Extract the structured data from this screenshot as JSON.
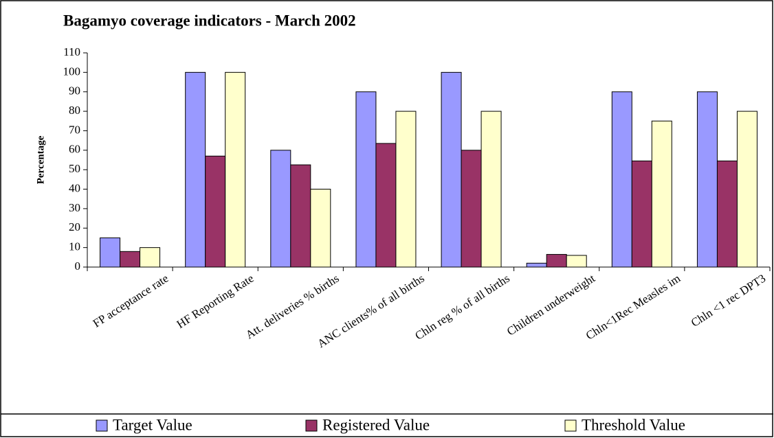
{
  "chart_data": {
    "type": "bar",
    "title": "Bagamyo coverage indicators - March 2002",
    "ylabel": "Percentage",
    "categories": [
      "FP acceptance rate",
      "HF Reporting Rate",
      "Att. deliveries % births",
      "ANC clients% of all births",
      "Chln reg % of all births",
      "Children underweight",
      "Chln<1Rec Measles im",
      "Chln <1 rec DPT3"
    ],
    "series": [
      {
        "name": "Target Value",
        "color": "#9999ff",
        "values": [
          15,
          100,
          60,
          90,
          100,
          2,
          90,
          90
        ]
      },
      {
        "name": "Registered Value",
        "color": "#993366",
        "values": [
          8,
          57,
          52.5,
          63.5,
          60,
          6.5,
          54.5,
          54.5
        ]
      },
      {
        "name": "Threshold Value",
        "color": "#ffffcc",
        "values": [
          10,
          100,
          40,
          80,
          80,
          6,
          75,
          80
        ]
      }
    ],
    "ylim": [
      0,
      110
    ],
    "yticks": [
      0,
      10,
      20,
      30,
      40,
      50,
      60,
      70,
      80,
      90,
      100,
      110
    ],
    "grid": false,
    "legend": "bottom"
  }
}
